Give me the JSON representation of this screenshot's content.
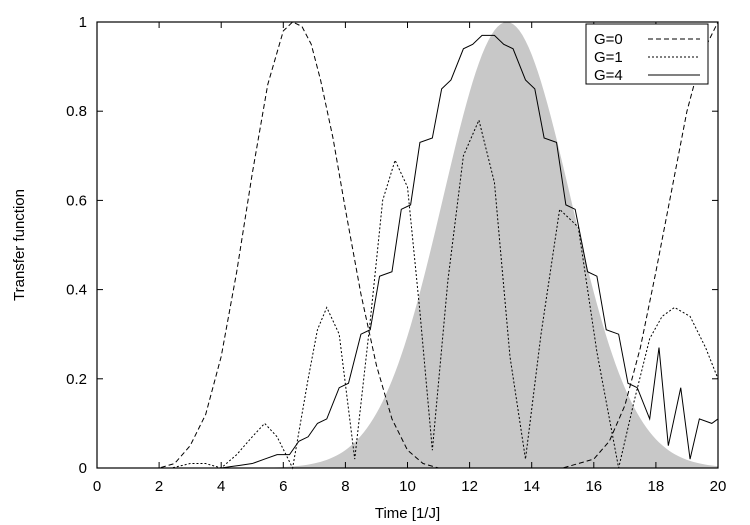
{
  "chart_data": {
    "type": "line",
    "title": "",
    "xlabel": "Time [1/J]",
    "ylabel": "Transfer function",
    "xlim": [
      0,
      20
    ],
    "ylim": [
      0,
      1
    ],
    "x_ticks": [
      "0",
      "2",
      "4",
      "6",
      "8",
      "10",
      "12",
      "14",
      "16",
      "18",
      "20"
    ],
    "y_ticks": [
      "0",
      "0.2",
      "0.4",
      "0.6",
      "0.8",
      "1"
    ],
    "grid": false,
    "legend_position": "top-right",
    "envelope": {
      "fill_color": "#c8c8c8",
      "center": 13.2,
      "width": 2.9,
      "peak": 1.0
    },
    "series": [
      {
        "name": "G=0",
        "style": "dashed",
        "x": [
          0,
          2,
          2.5,
          3,
          3.5,
          4,
          4.5,
          5,
          5.5,
          6,
          6.3,
          6.6,
          6.9,
          7.2,
          7.6,
          8,
          8.5,
          9,
          9.5,
          10,
          10.5,
          11,
          12,
          13,
          14,
          15,
          16,
          16.5,
          17,
          17.5,
          18,
          18.5,
          19,
          19.5,
          20
        ],
        "values": [
          0,
          0,
          0.01,
          0.05,
          0.12,
          0.25,
          0.44,
          0.66,
          0.86,
          0.98,
          1.0,
          0.99,
          0.95,
          0.87,
          0.74,
          0.58,
          0.39,
          0.23,
          0.11,
          0.04,
          0.01,
          0,
          0,
          0,
          0,
          0,
          0.02,
          0.06,
          0.14,
          0.27,
          0.44,
          0.62,
          0.8,
          0.93,
          1.0
        ]
      },
      {
        "name": "G=1",
        "style": "dotted",
        "x": [
          0,
          2.4,
          3,
          3.5,
          4,
          4.5,
          5,
          5.4,
          5.8,
          6.3,
          6.8,
          7.1,
          7.4,
          7.8,
          8.3,
          8.8,
          9.2,
          9.6,
          10,
          10.4,
          10.8,
          11.3,
          11.8,
          12.3,
          12.8,
          13.3,
          13.8,
          14.3,
          14.9,
          15.5,
          16.1,
          16.8,
          17.3,
          17.8,
          18.2,
          18.6,
          19.1,
          19.6,
          20
        ],
        "values": [
          0,
          0,
          0.01,
          0.01,
          0,
          0.03,
          0.07,
          0.1,
          0.07,
          0,
          0.2,
          0.31,
          0.36,
          0.3,
          0.02,
          0.33,
          0.6,
          0.69,
          0.63,
          0.35,
          0.04,
          0.42,
          0.7,
          0.78,
          0.64,
          0.25,
          0.02,
          0.3,
          0.58,
          0.54,
          0.26,
          0,
          0.15,
          0.29,
          0.34,
          0.36,
          0.34,
          0.27,
          0.2
        ]
      },
      {
        "name": "G=4",
        "style": "solid",
        "x": [
          0,
          4.0,
          4.3,
          4.6,
          5.0,
          5.4,
          5.8,
          6.2,
          6.5,
          6.8,
          7.1,
          7.4,
          7.8,
          8.1,
          8.5,
          8.8,
          9.1,
          9.5,
          9.8,
          10.1,
          10.4,
          10.8,
          11.1,
          11.4,
          11.8,
          12.1,
          12.4,
          12.8,
          13.1,
          13.4,
          13.8,
          14.1,
          14.4,
          14.8,
          15.1,
          15.4,
          15.8,
          16.1,
          16.4,
          16.8,
          17.1,
          17.4,
          17.8,
          18.1,
          18.4,
          18.8,
          19.1,
          19.4,
          19.8,
          20
        ],
        "values": [
          0,
          0,
          0.003,
          0.006,
          0.01,
          0.02,
          0.03,
          0.03,
          0.06,
          0.07,
          0.1,
          0.11,
          0.18,
          0.19,
          0.3,
          0.31,
          0.43,
          0.44,
          0.58,
          0.59,
          0.73,
          0.74,
          0.85,
          0.87,
          0.94,
          0.95,
          0.97,
          0.97,
          0.95,
          0.94,
          0.87,
          0.85,
          0.74,
          0.73,
          0.59,
          0.58,
          0.44,
          0.43,
          0.31,
          0.3,
          0.19,
          0.18,
          0.11,
          0.27,
          0.05,
          0.18,
          0.02,
          0.11,
          0.1,
          0.11
        ]
      }
    ]
  }
}
